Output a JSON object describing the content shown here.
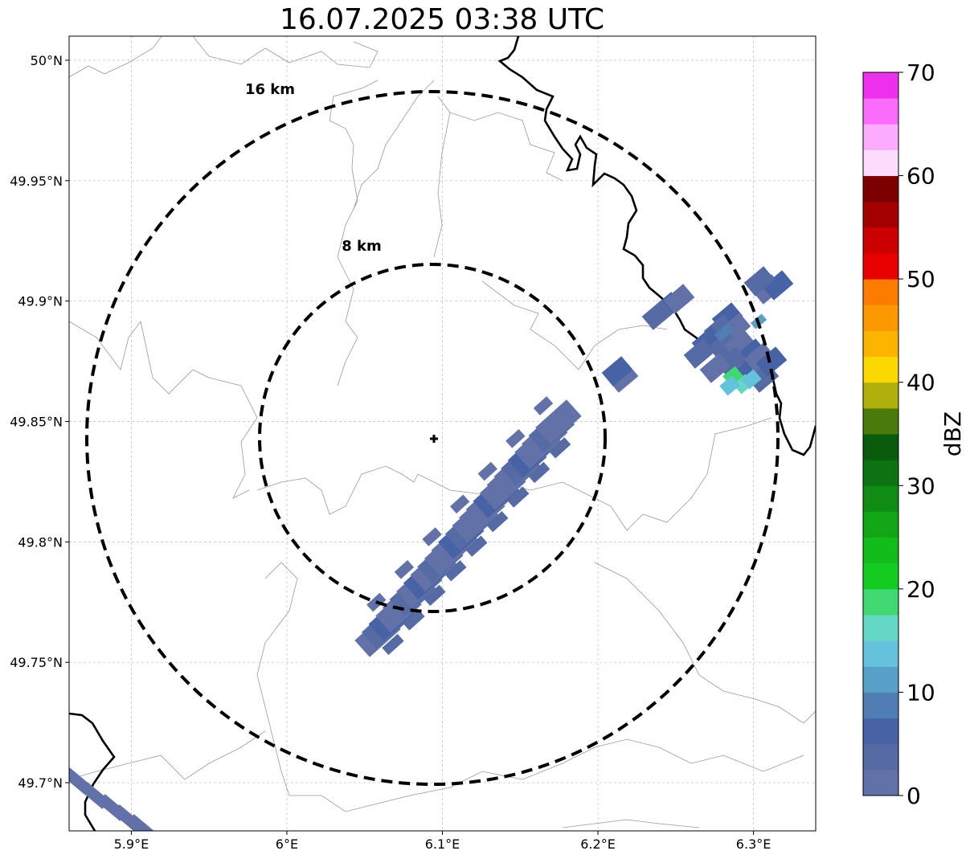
{
  "title": "16.07.2025 03:38 UTC",
  "map": {
    "lon_range": [
      5.86,
      6.34
    ],
    "lat_range": [
      49.68,
      50.01
    ],
    "lon_ticks": [
      "5.9°E",
      "6°E",
      "6.1°E",
      "6.2°E",
      "6.3°E"
    ],
    "lon_tick_values": [
      5.9,
      6.0,
      6.1,
      6.2,
      6.3
    ],
    "lat_ticks": [
      "50°N",
      "49.95°N",
      "49.9°N",
      "49.85°N",
      "49.8°N",
      "49.75°N",
      "49.7°N"
    ],
    "lat_tick_values": [
      50.0,
      49.95,
      49.9,
      49.85,
      49.8,
      49.75,
      49.7
    ],
    "grid": true,
    "radar_site": {
      "lon": 6.095,
      "lat": 49.843
    },
    "range_rings": [
      {
        "label": "8 km",
        "radius_km": 8
      },
      {
        "label": "16 km",
        "radius_km": 16
      }
    ]
  },
  "colorbar": {
    "label": "dBZ",
    "min": 0,
    "max": 70,
    "ticks": [
      "0",
      "10",
      "20",
      "30",
      "40",
      "50",
      "60",
      "70"
    ],
    "colors": [
      "#6272a8",
      "#566aa4",
      "#4862a6",
      "#4e7eb4",
      "#58a0c8",
      "#64c2dc",
      "#64d8c4",
      "#40d870",
      "#14cc20",
      "#12bc1a",
      "#10a616",
      "#0e8c14",
      "#0c7212",
      "#0a5c0c",
      "#4a7a0c",
      "#b0b00c",
      "#fcd800",
      "#fcb400",
      "#fc9800",
      "#fc7c00",
      "#e80000",
      "#cc0000",
      "#a40000",
      "#7c0000",
      "#fcdcfc",
      "#fcacfc",
      "#fc6cfc",
      "#ec30ec"
    ]
  }
}
